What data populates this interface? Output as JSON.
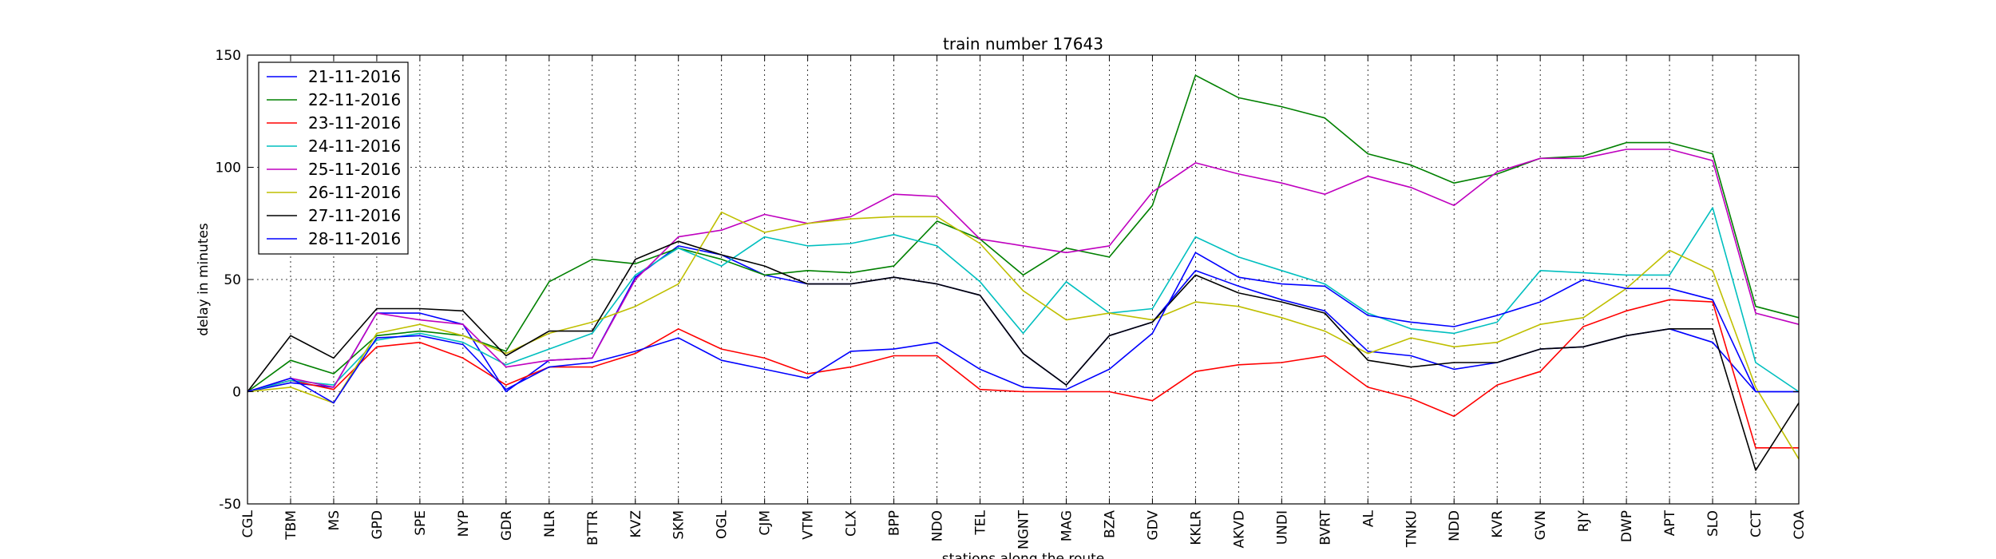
{
  "chart_data": {
    "type": "line",
    "title": "train number 17643",
    "xlabel": "stations along the route",
    "ylabel": "delay in minutes",
    "ylim": [
      -50,
      150
    ],
    "yticks": [
      -50,
      0,
      50,
      100,
      150
    ],
    "grid": true,
    "legend_position": "top-left",
    "categories": [
      "CGL",
      "TBM",
      "MS",
      "GPD",
      "SPE",
      "NYP",
      "GDR",
      "NLR",
      "BTTR",
      "KVZ",
      "SKM",
      "OGL",
      "CJM",
      "VTM",
      "CLX",
      "BPP",
      "NDO",
      "TEL",
      "NGNT",
      "MAG",
      "BZA",
      "GDV",
      "KKLR",
      "AKVD",
      "UNDI",
      "BVRT",
      "AL",
      "TNKU",
      "NDD",
      "KVR",
      "GVN",
      "RJY",
      "DWP",
      "APT",
      "SLO",
      "CCT",
      "COA"
    ],
    "series": [
      {
        "name": "21-11-2016",
        "color": "#0000ff",
        "values": [
          0,
          4,
          2,
          35,
          35,
          30,
          0,
          14,
          15,
          51,
          65,
          61,
          52,
          48,
          48,
          51,
          48,
          43,
          17,
          3,
          25,
          31,
          54,
          47,
          41,
          36,
          18,
          16,
          10,
          13,
          19,
          20,
          25,
          28,
          22,
          0,
          0
        ]
      },
      {
        "name": "22-11-2016",
        "color": "#008000",
        "values": [
          0,
          14,
          8,
          25,
          27,
          25,
          18,
          49,
          59,
          57,
          64,
          59,
          52,
          54,
          53,
          56,
          76,
          68,
          52,
          64,
          60,
          83,
          141,
          131,
          127,
          122,
          106,
          101,
          93,
          97,
          104,
          105,
          111,
          111,
          106,
          38,
          33
        ]
      },
      {
        "name": "23-11-2016",
        "color": "#ff0000",
        "values": [
          0,
          5,
          1,
          20,
          22,
          15,
          3,
          11,
          11,
          17,
          28,
          19,
          15,
          8,
          11,
          16,
          16,
          1,
          0,
          0,
          0,
          -4,
          9,
          12,
          13,
          16,
          2,
          -3,
          -11,
          3,
          9,
          29,
          36,
          41,
          40,
          -25,
          -25
        ]
      },
      {
        "name": "24-11-2016",
        "color": "#00bfbf",
        "values": [
          0,
          5,
          3,
          23,
          26,
          22,
          12,
          19,
          26,
          52,
          64,
          56,
          69,
          65,
          66,
          70,
          65,
          49,
          26,
          49,
          35,
          37,
          69,
          60,
          54,
          48,
          35,
          28,
          26,
          31,
          54,
          53,
          52,
          52,
          82,
          13,
          0
        ]
      },
      {
        "name": "25-11-2016",
        "color": "#bf00bf",
        "values": [
          0,
          6,
          2,
          35,
          32,
          30,
          11,
          14,
          15,
          50,
          69,
          72,
          79,
          75,
          78,
          88,
          87,
          68,
          65,
          62,
          65,
          89,
          102,
          97,
          93,
          88,
          96,
          91,
          83,
          98,
          104,
          104,
          108,
          108,
          103,
          35,
          30
        ]
      },
      {
        "name": "26-11-2016",
        "color": "#bfbf00",
        "values": [
          0,
          2,
          -5,
          26,
          30,
          25,
          17,
          26,
          31,
          38,
          48,
          80,
          71,
          75,
          77,
          78,
          78,
          66,
          45,
          32,
          35,
          32,
          40,
          38,
          33,
          27,
          17,
          24,
          20,
          22,
          30,
          33,
          46,
          63,
          54,
          2,
          -30
        ]
      },
      {
        "name": "27-11-2016",
        "color": "#000000",
        "values": [
          0,
          25,
          15,
          37,
          37,
          36,
          16,
          27,
          27,
          59,
          67,
          61,
          56,
          48,
          48,
          51,
          48,
          43,
          17,
          3,
          25,
          31,
          52,
          44,
          40,
          35,
          14,
          11,
          13,
          13,
          19,
          20,
          25,
          28,
          28,
          -35,
          -5
        ]
      },
      {
        "name": "28-11-2016",
        "color": "#0000ff",
        "values": [
          0,
          6,
          -5,
          24,
          25,
          21,
          1,
          11,
          13,
          18,
          24,
          14,
          10,
          6,
          18,
          19,
          22,
          10,
          2,
          1,
          10,
          26,
          62,
          51,
          48,
          47,
          34,
          31,
          29,
          34,
          40,
          50,
          46,
          46,
          41,
          0,
          0
        ]
      }
    ]
  }
}
